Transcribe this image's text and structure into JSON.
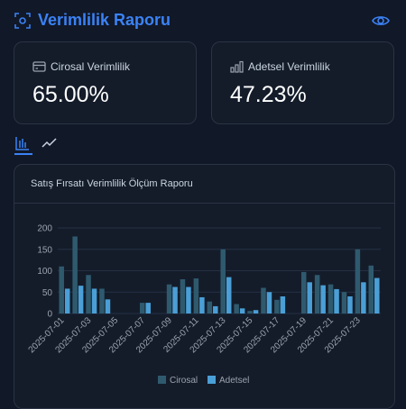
{
  "header": {
    "title": "Verimlilik Raporu"
  },
  "cards": [
    {
      "label": "Cirosal Verimlilik",
      "value": "65.00%",
      "icon": "wallet-icon"
    },
    {
      "label": "Adetsel Verimlilik",
      "value": "47.23%",
      "icon": "bar-chart-icon"
    }
  ],
  "toggles": [
    "bar-chart-icon",
    "line-chart-icon"
  ],
  "colors": {
    "accent": "#3b82f6",
    "cirosal": "#2f5a6e",
    "adetsel": "#4a9fd6"
  },
  "chart_data": {
    "type": "bar",
    "title": "Satış Fırsatı Verimlilik Ölçüm Raporu",
    "x": [
      "2025-07-01",
      "2025-07-02",
      "2025-07-03",
      "2025-07-04",
      "2025-07-05",
      "2025-07-06",
      "2025-07-07",
      "2025-07-08",
      "2025-07-09",
      "2025-07-10",
      "2025-07-11",
      "2025-07-12",
      "2025-07-13",
      "2025-07-14",
      "2025-07-15",
      "2025-07-16",
      "2025-07-17",
      "2025-07-18",
      "2025-07-19",
      "2025-07-20",
      "2025-07-21",
      "2025-07-22",
      "2025-07-23",
      "2025-07-24"
    ],
    "tick_labels": [
      "2025-07-01",
      "2025-07-03",
      "2025-07-05",
      "2025-07-07",
      "2025-07-09",
      "2025-07-11",
      "2025-07-13",
      "2025-07-15",
      "2025-07-17",
      "2025-07-19",
      "2025-07-21",
      "2025-07-23"
    ],
    "series": [
      {
        "name": "Cirosal",
        "values": [
          110,
          180,
          90,
          58,
          0,
          0,
          25,
          0,
          68,
          80,
          82,
          28,
          150,
          22,
          6,
          60,
          32,
          0,
          97,
          90,
          68,
          50,
          150,
          112
        ]
      },
      {
        "name": "Adetsel",
        "values": [
          58,
          65,
          58,
          33,
          0,
          0,
          25,
          0,
          62,
          62,
          38,
          17,
          85,
          12,
          8,
          50,
          40,
          0,
          73,
          66,
          57,
          40,
          73,
          83
        ]
      }
    ],
    "yticks": [
      0,
      50,
      100,
      150,
      200
    ],
    "ylim": [
      0,
      200
    ],
    "grid": true,
    "legend": "bottom"
  }
}
